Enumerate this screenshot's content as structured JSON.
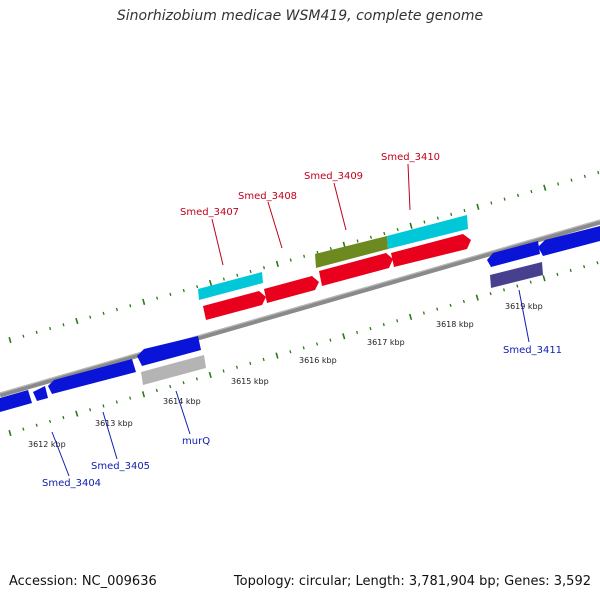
{
  "title": "Sinorhizobium medicae WSM419, complete genome",
  "footer": {
    "accession": "Accession: NC_009636",
    "summary": "Topology: circular; Length: 3,781,904 bp; Genes: 3,592"
  },
  "colors": {
    "forward_gene": "#e8001c",
    "forward_gene_light": "#00c8d8",
    "forward_gene_olive": "#6d8a20",
    "reverse_gene": "#0a14d8",
    "reverse_gene_gray": "#b4b4b4",
    "reverse_gene_slate": "#47408e",
    "label_forward": "#c0001a",
    "label_reverse": "#1020b0",
    "tick": "#2a7a1a",
    "backbone": "#8a8a8a"
  },
  "kbp_labels": [
    "3612 kbp",
    "3613 kbp",
    "3614 kbp",
    "3615 kbp",
    "3616 kbp",
    "3617 kbp",
    "3618 kbp",
    "3619 kbp"
  ],
  "gene_labels": {
    "forward": [
      "Smed_3407",
      "Smed_3408",
      "Smed_3409",
      "Smed_3410"
    ],
    "reverse": [
      "Smed_3404",
      "Smed_3405",
      "murQ",
      "Smed_3411"
    ]
  }
}
